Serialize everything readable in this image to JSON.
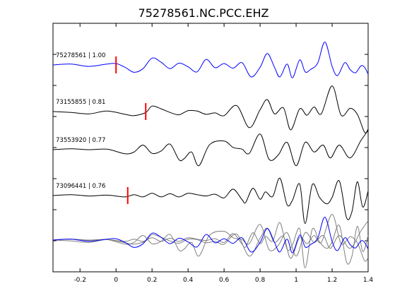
{
  "chart_data": {
    "type": "line",
    "title": "75278561.NC.PCC.EHZ",
    "xlabel": "",
    "ylabel": "",
    "xlim": [
      -0.35,
      1.4
    ],
    "x_ticks": [
      -0.2,
      0,
      0.2,
      0.4,
      0.6,
      0.8,
      1,
      1.2,
      1.4
    ],
    "x_tick_labels": [
      "-0.2",
      "0",
      "0.2",
      "0.4",
      "0.6",
      "0.8",
      "1",
      "1.2",
      "1.4"
    ],
    "y_tick_count": 7,
    "grid": false,
    "legend": "none",
    "colors": {
      "reference": "#0000ff",
      "other": "#000000",
      "overlay_other": "#808080",
      "pick": "#ff0000",
      "axes": "#000000"
    },
    "series": [
      {
        "label": "75278561 | 1.00",
        "station_id": "75278561",
        "correlation": "1.00",
        "role": "reference",
        "pick_time": 0.0,
        "waveform": [
          [
            -0.35,
            0
          ],
          [
            -0.25,
            0.2
          ],
          [
            -0.15,
            -0.3
          ],
          [
            -0.05,
            0.2
          ],
          [
            0.0,
            0.3
          ],
          [
            0.05,
            -0.5
          ],
          [
            0.1,
            -1.6
          ],
          [
            0.15,
            -0.8
          ],
          [
            0.2,
            1.5
          ],
          [
            0.25,
            0.6
          ],
          [
            0.3,
            -0.8
          ],
          [
            0.35,
            0.4
          ],
          [
            0.4,
            -0.4
          ],
          [
            0.45,
            -1.5
          ],
          [
            0.5,
            1.2
          ],
          [
            0.55,
            -0.6
          ],
          [
            0.6,
            0.3
          ],
          [
            0.65,
            -0.7
          ],
          [
            0.7,
            0.5
          ],
          [
            0.75,
            -2.6
          ],
          [
            0.8,
            -0.5
          ],
          [
            0.84,
            2.5
          ],
          [
            0.88,
            -0.5
          ],
          [
            0.91,
            -2.6
          ],
          [
            0.95,
            0.2
          ],
          [
            0.98,
            -2.8
          ],
          [
            1.02,
            1.1
          ],
          [
            1.05,
            -1.5
          ],
          [
            1.08,
            -1.0
          ],
          [
            1.12,
            0.4
          ],
          [
            1.16,
            5.0
          ],
          [
            1.2,
            -0.3
          ],
          [
            1.23,
            -2.3
          ],
          [
            1.27,
            0.5
          ],
          [
            1.3,
            -1.0
          ],
          [
            1.33,
            -1.7
          ],
          [
            1.36,
            -0.2
          ],
          [
            1.38,
            -0.5
          ],
          [
            1.4,
            -2.0
          ]
        ]
      },
      {
        "label": "73155855 | 0.81",
        "station_id": "73155855",
        "correlation": "0.81",
        "role": "other",
        "pick_time": 0.165,
        "waveform": [
          [
            -0.35,
            0
          ],
          [
            -0.25,
            -0.2
          ],
          [
            -0.15,
            -0.5
          ],
          [
            -0.05,
            0.1
          ],
          [
            0.05,
            -0.6
          ],
          [
            0.1,
            -0.9
          ],
          [
            0.165,
            -0.2
          ],
          [
            0.2,
            1.2
          ],
          [
            0.25,
            0.6
          ],
          [
            0.3,
            -0.2
          ],
          [
            0.35,
            -0.7
          ],
          [
            0.4,
            0.2
          ],
          [
            0.45,
            0.1
          ],
          [
            0.5,
            -0.6
          ],
          [
            0.55,
            -0.3
          ],
          [
            0.6,
            -0.9
          ],
          [
            0.67,
            1.3
          ],
          [
            0.74,
            -3.5
          ],
          [
            0.8,
            0.4
          ],
          [
            0.84,
            2.6
          ],
          [
            0.88,
            -0.5
          ],
          [
            0.93,
            0.8
          ],
          [
            0.97,
            -4.0
          ],
          [
            1.02,
            0.6
          ],
          [
            1.06,
            -0.8
          ],
          [
            1.1,
            1.0
          ],
          [
            1.14,
            -0.5
          ],
          [
            1.2,
            5.6
          ],
          [
            1.25,
            -0.8
          ],
          [
            1.3,
            0.7
          ],
          [
            1.34,
            -0.6
          ],
          [
            1.38,
            -4.5
          ],
          [
            1.4,
            -3.8
          ]
        ]
      },
      {
        "label": "73553920 | 0.77",
        "station_id": "73553920",
        "correlation": "0.77",
        "role": "other",
        "pick_time": null,
        "waveform": [
          [
            -0.35,
            0
          ],
          [
            -0.25,
            0.2
          ],
          [
            -0.15,
            0.0
          ],
          [
            -0.05,
            0.1
          ],
          [
            0.05,
            -0.9
          ],
          [
            0.1,
            -0.5
          ],
          [
            0.15,
            1.0
          ],
          [
            0.2,
            -0.8
          ],
          [
            0.25,
            -0.3
          ],
          [
            0.3,
            1.2
          ],
          [
            0.35,
            -2.2
          ],
          [
            0.38,
            -1.9
          ],
          [
            0.42,
            -0.5
          ],
          [
            0.46,
            -3.5
          ],
          [
            0.52,
            1.1
          ],
          [
            0.6,
            1.9
          ],
          [
            0.65,
            0.5
          ],
          [
            0.7,
            0.1
          ],
          [
            0.74,
            -0.8
          ],
          [
            0.8,
            3.4
          ],
          [
            0.85,
            -2.1
          ],
          [
            0.9,
            -1.2
          ],
          [
            0.95,
            1.6
          ],
          [
            1.0,
            -3.5
          ],
          [
            1.05,
            1.6
          ],
          [
            1.1,
            -0.5
          ],
          [
            1.15,
            1.0
          ],
          [
            1.19,
            -1.8
          ],
          [
            1.24,
            1.0
          ],
          [
            1.3,
            -1.8
          ],
          [
            1.36,
            2.0
          ],
          [
            1.4,
            4.2
          ]
        ]
      },
      {
        "label": "73096441 | 0.76",
        "station_id": "73096441",
        "correlation": "0.76",
        "role": "other",
        "pick_time": 0.065,
        "waveform": [
          [
            -0.35,
            0
          ],
          [
            -0.25,
            0.2
          ],
          [
            -0.15,
            -0.1
          ],
          [
            -0.05,
            0.1
          ],
          [
            0.05,
            -0.3
          ],
          [
            0.1,
            0.2
          ],
          [
            0.15,
            -0.3
          ],
          [
            0.2,
            0.5
          ],
          [
            0.25,
            -0.3
          ],
          [
            0.3,
            0.4
          ],
          [
            0.35,
            -0.3
          ],
          [
            0.4,
            0.5
          ],
          [
            0.45,
            0.2
          ],
          [
            0.5,
            -0.1
          ],
          [
            0.55,
            0.3
          ],
          [
            0.6,
            -0.5
          ],
          [
            0.65,
            1.4
          ],
          [
            0.7,
            -0.9
          ],
          [
            0.72,
            -1.5
          ],
          [
            0.76,
            1.6
          ],
          [
            0.8,
            -0.8
          ],
          [
            0.83,
            0.8
          ],
          [
            0.87,
            -0.2
          ],
          [
            0.91,
            3.8
          ],
          [
            0.95,
            -2.0
          ],
          [
            0.98,
            -1.0
          ],
          [
            1.02,
            2.5
          ],
          [
            1.05,
            -6.1
          ],
          [
            1.09,
            2.4
          ],
          [
            1.13,
            -0.4
          ],
          [
            1.17,
            -1.8
          ],
          [
            1.2,
            -0.4
          ],
          [
            1.24,
            3.2
          ],
          [
            1.28,
            -4.8
          ],
          [
            1.31,
            -3.5
          ],
          [
            1.34,
            3.0
          ],
          [
            1.37,
            -2.5
          ],
          [
            1.4,
            1.0
          ]
        ]
      }
    ]
  }
}
